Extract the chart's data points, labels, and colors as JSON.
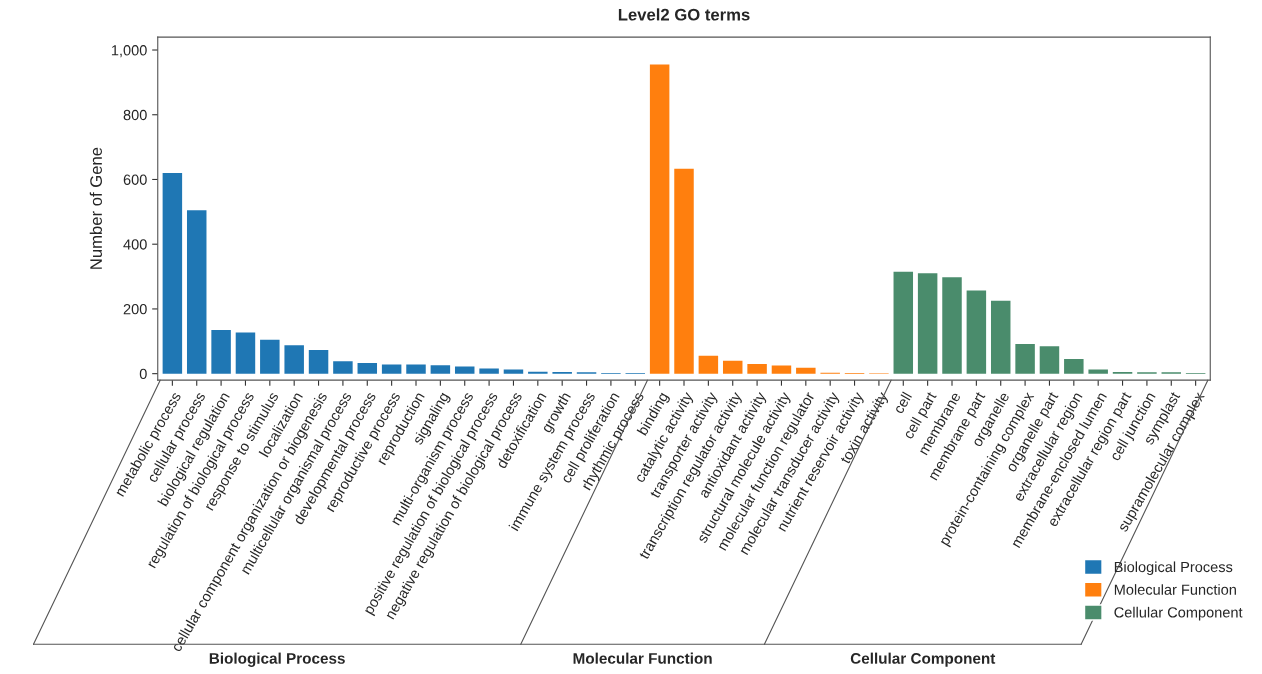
{
  "chart_data": {
    "type": "bar",
    "title": "Level2 GO terms",
    "ylabel": "Number of Gene",
    "categories": [
      "metabolic process",
      "cellular process",
      "biological regulation",
      "regulation of biological process",
      "response to stimulus",
      "localization",
      "cellular component organization or biogenesis",
      "multicellular organismal process",
      "developmental process",
      "reproductive process",
      "reproduction",
      "signaling",
      "multi-organism process",
      "positive regulation of biological process",
      "negative regulation of biological process",
      "detoxification",
      "growth",
      "immune system process",
      "cell proliferation",
      "rhythmic process",
      "binding",
      "catalytic activity",
      "transporter activity",
      "transcription regulator activity",
      "antioxidant activity",
      "structural molecule activity",
      "molecular function regulator",
      "molecular transducer activity",
      "nutrient reservoir activity",
      "toxin activity",
      "cell",
      "cell part",
      "membrane",
      "membrane part",
      "organelle",
      "protein-containing complex",
      "organelle part",
      "extracellular region",
      "membrane-enclosed lumen",
      "extracellular region part",
      "cell junction",
      "symplast",
      "supramolecular complex"
    ],
    "series": [
      {
        "name": "Biological Process",
        "color": "#1f77b4",
        "values": [
          620,
          505,
          135,
          127,
          105,
          88,
          73,
          38,
          33,
          28,
          28,
          26,
          22,
          16,
          13,
          6,
          5,
          4,
          2,
          2,
          null,
          null,
          null,
          null,
          null,
          null,
          null,
          null,
          null,
          null,
          null,
          null,
          null,
          null,
          null,
          null,
          null,
          null,
          null,
          null,
          null,
          null,
          null
        ]
      },
      {
        "name": "Molecular Function",
        "color": "#ff7f0e",
        "values": [
          null,
          null,
          null,
          null,
          null,
          null,
          null,
          null,
          null,
          null,
          null,
          null,
          null,
          null,
          null,
          null,
          null,
          null,
          null,
          null,
          955,
          633,
          55,
          40,
          30,
          25,
          18,
          3,
          2,
          1,
          null,
          null,
          null,
          null,
          null,
          null,
          null,
          null,
          null,
          null,
          null,
          null,
          null
        ]
      },
      {
        "name": "Cellular Component",
        "color": "#4a8c6c",
        "values": [
          null,
          null,
          null,
          null,
          null,
          null,
          null,
          null,
          null,
          null,
          null,
          null,
          null,
          null,
          null,
          null,
          null,
          null,
          null,
          null,
          null,
          null,
          null,
          null,
          null,
          null,
          null,
          null,
          null,
          null,
          315,
          310,
          298,
          257,
          225,
          92,
          85,
          45,
          13,
          5,
          4,
          4,
          2
        ]
      }
    ],
    "annotations": [
      "Biological Process",
      "Molecular Function",
      "Cellular Component"
    ],
    "ylim": [
      -20,
      1040
    ],
    "yticks": [
      0,
      200,
      400,
      600,
      800,
      {
        "value": 1000,
        "label": "1,000"
      }
    ],
    "grid": false,
    "legend": "bottom right"
  }
}
